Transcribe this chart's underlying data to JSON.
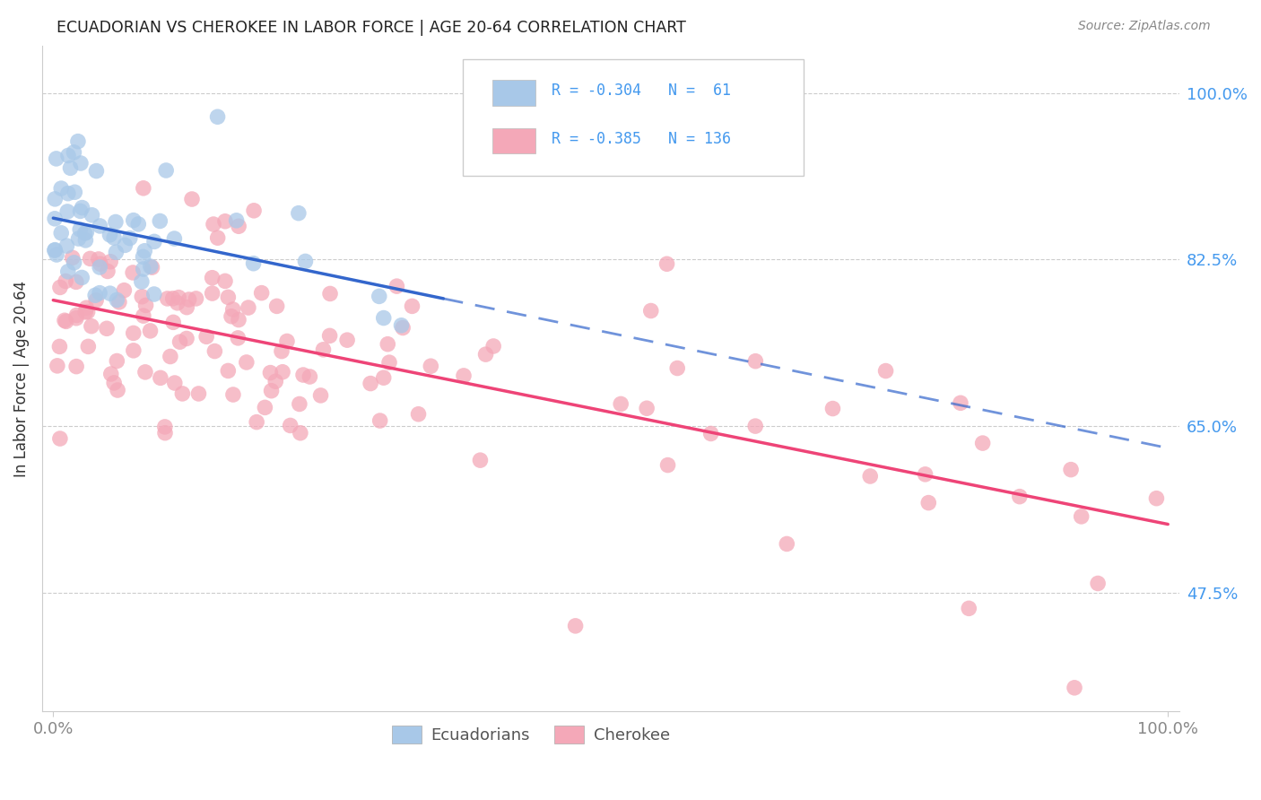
{
  "title": "ECUADORIAN VS CHEROKEE IN LABOR FORCE | AGE 20-64 CORRELATION CHART",
  "source": "Source: ZipAtlas.com",
  "ylabel": "In Labor Force | Age 20-64",
  "xmin": 0.0,
  "xmax": 1.0,
  "ymin": 0.35,
  "ymax": 1.05,
  "ecuadorian_color": "#a8c8e8",
  "cherokee_color": "#f4a8b8",
  "ecuadorian_R": -0.304,
  "ecuadorian_N": 61,
  "cherokee_R": -0.385,
  "cherokee_N": 136,
  "ecuadorian_line_color": "#3366cc",
  "cherokee_line_color": "#ee4477",
  "background_color": "#ffffff",
  "grid_color": "#cccccc",
  "ytick_labeled": {
    "0.475": "47.5%",
    "0.65": "65.0%",
    "0.825": "82.5%",
    "1.0": "100.0%"
  },
  "right_tick_color": "#4499ee",
  "legend_R_color": "#cc2244"
}
